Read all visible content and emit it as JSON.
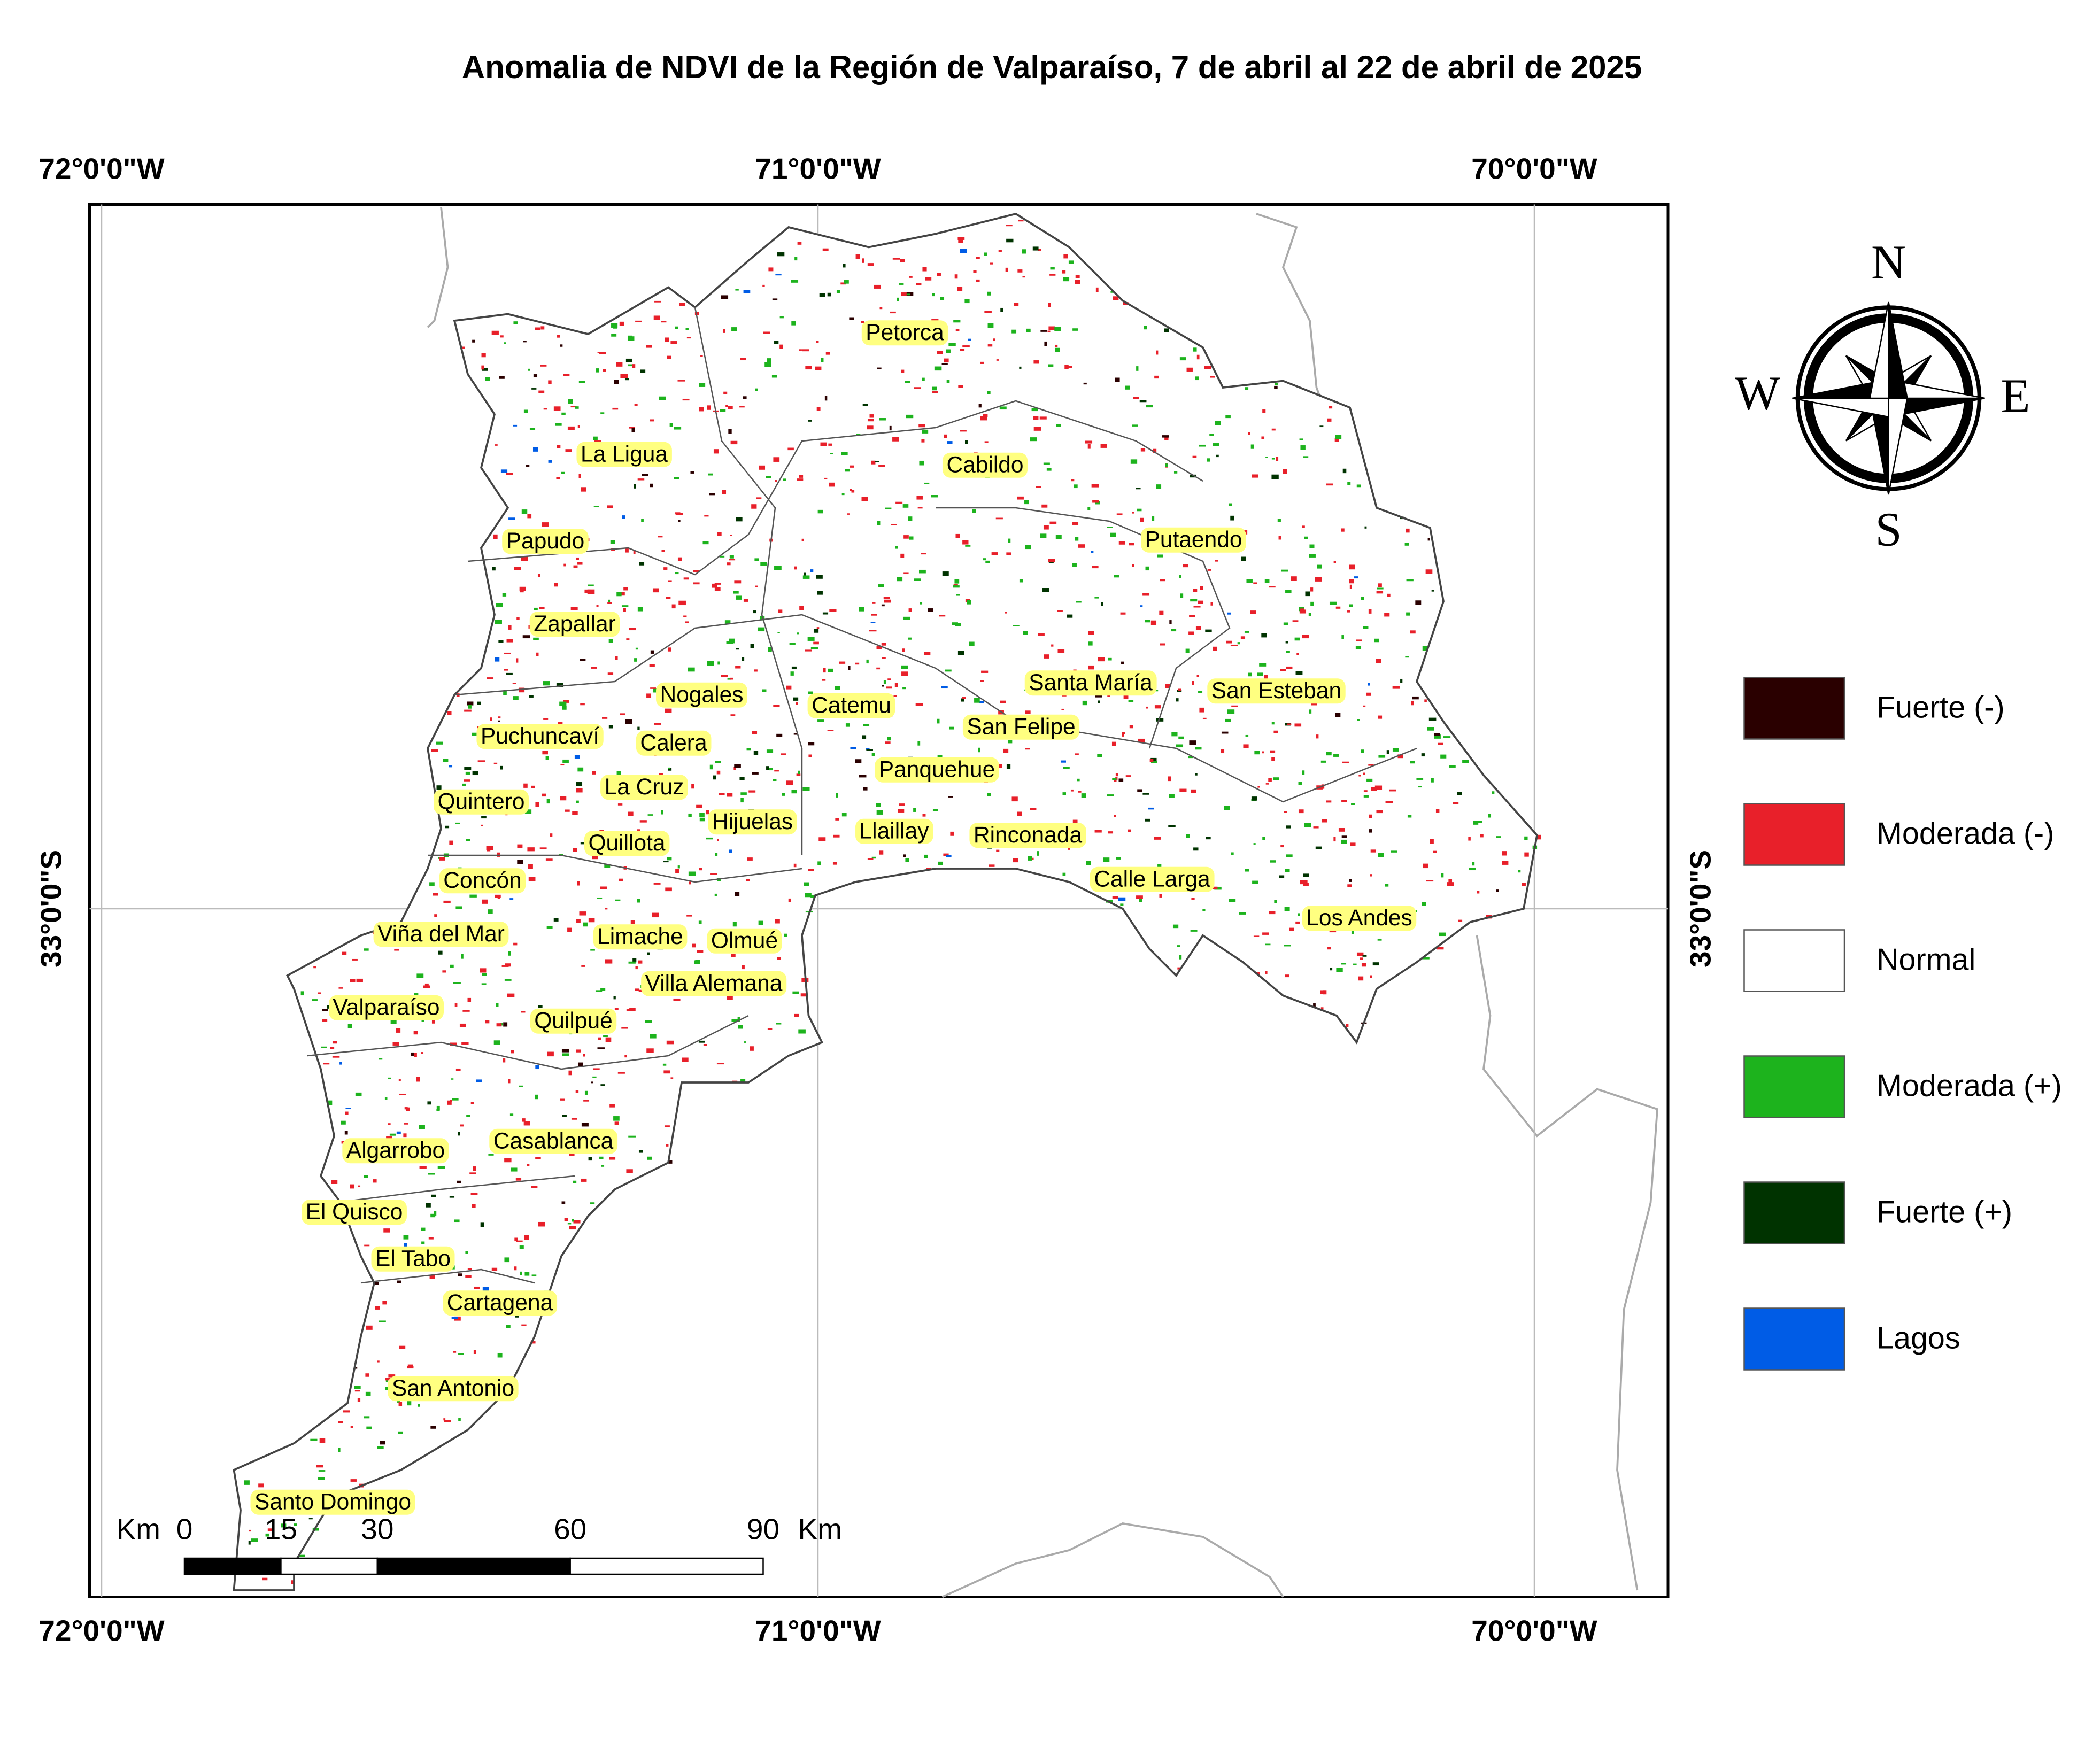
{
  "title": "Anomalia de NDVI de la Región de Valparaíso, 7 de abril al 22 de abril de 2025",
  "graticule": {
    "longitudes": [
      "72°0'0\"W",
      "71°0'0\"W",
      "70°0'0\"W"
    ],
    "latitudes": [
      "33°0'0\"S"
    ]
  },
  "compass": {
    "north": "N",
    "east": "E",
    "south": "S",
    "west": "W"
  },
  "legend": {
    "items": [
      {
        "label": "Fuerte (-)",
        "color": "#2a0000"
      },
      {
        "label": "Moderada (-)",
        "color": "#e8202a"
      },
      {
        "label": "Normal",
        "color": "#ffffff"
      },
      {
        "label": "Moderada (+)",
        "color": "#1db31d"
      },
      {
        "label": "Fuerte (+)",
        "color": "#003300"
      },
      {
        "label": "Lagos",
        "color": "#005ce6"
      }
    ]
  },
  "scale_bar": {
    "unit": "Km",
    "ticks": [
      0,
      15,
      30,
      60,
      90
    ]
  },
  "communes": [
    "Petorca",
    "Cabildo",
    "La Ligua",
    "Papudo",
    "Putaendo",
    "Zapallar",
    "Nogales",
    "Catemu",
    "Santa María",
    "San Esteban",
    "San Felipe",
    "Puchuncaví",
    "Calera",
    "Panquehue",
    "La Cruz",
    "Quintero",
    "Hijuelas",
    "Llaillay",
    "Rinconada",
    "Quillota",
    "Calle Larga",
    "Concón",
    "Los Andes",
    "Viña del Mar",
    "Limache",
    "Olmué",
    "Villa Alemana",
    "Valparaíso",
    "Quilpué",
    "Casablanca",
    "Algarrobo",
    "El Quisco",
    "El Tabo",
    "Cartagena",
    "San Antonio",
    "Santo Domingo"
  ]
}
